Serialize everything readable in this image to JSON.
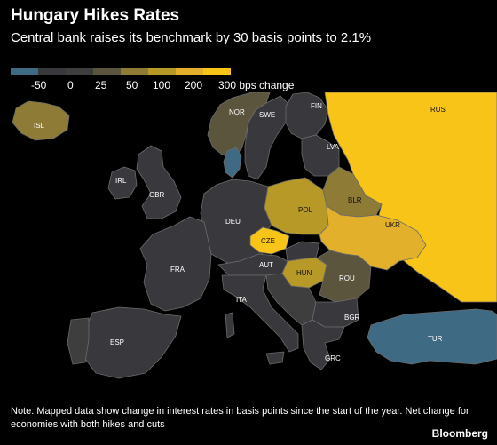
{
  "header": {
    "title": "Hungary Hikes Rates",
    "subtitle": "Central bank raises its benchmark by 30 basis points to 2.1%"
  },
  "legend": {
    "labels": [
      "-50",
      "0",
      "25",
      "50",
      "100",
      "200",
      "300 bps change"
    ],
    "colors": [
      "#3e6a84",
      "#39393d",
      "#3f3e3e",
      "#5b553e",
      "#8e7b36",
      "#b69927",
      "#e2b02a",
      "#f8c417"
    ]
  },
  "countries": {
    "ISL": {
      "label": "ISL",
      "color": "#8e7b36"
    },
    "NOR": {
      "label": "NOR",
      "color": "#5b553e"
    },
    "SWE": {
      "label": "SWE",
      "color": "#39393d"
    },
    "FIN": {
      "label": "FIN",
      "color": "#39393d"
    },
    "RUS": {
      "label": "RUS",
      "color": "#f8c417"
    },
    "LVA": {
      "label": "LVA",
      "color": "#39393d"
    },
    "DNK": {
      "label": "",
      "color": "#3e6a84"
    },
    "IRL": {
      "label": "IRL",
      "color": "#39393d"
    },
    "GBR": {
      "label": "GBR",
      "color": "#39393d"
    },
    "BLR": {
      "label": "BLR",
      "color": "#8e7b36"
    },
    "POL": {
      "label": "POL",
      "color": "#b69927"
    },
    "DEU": {
      "label": "DEU",
      "color": "#39393d"
    },
    "UKR": {
      "label": "UKR",
      "color": "#e2b02a"
    },
    "CZE": {
      "label": "CZE",
      "color": "#f8c417"
    },
    "FRA": {
      "label": "FRA",
      "color": "#39393d"
    },
    "AUT": {
      "label": "AUT",
      "color": "#39393d"
    },
    "HUN": {
      "label": "HUN",
      "color": "#b69927"
    },
    "ROU": {
      "label": "ROU",
      "color": "#5b553e"
    },
    "ITA": {
      "label": "ITA",
      "color": "#39393d"
    },
    "BGR": {
      "label": "BGR",
      "color": "#39393d"
    },
    "ESP": {
      "label": "ESP",
      "color": "#39393d"
    },
    "TUR": {
      "label": "TUR",
      "color": "#3e6a84"
    },
    "GRC": {
      "label": "GRC",
      "color": "#39393d"
    }
  },
  "footer": {
    "note": "Note: Mapped data show change in interest rates in basis points since the start of the year. Net change for economies with both hikes and cuts",
    "source": "Bloomberg"
  }
}
